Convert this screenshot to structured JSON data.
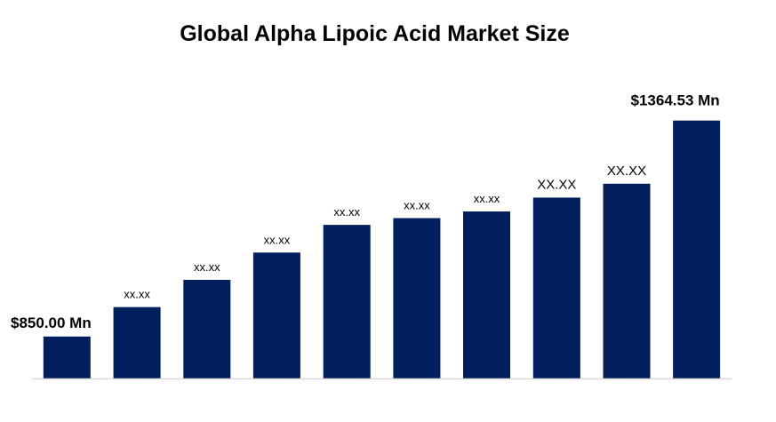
{
  "chart_data": {
    "type": "bar",
    "title": "Global Alpha Lipoic Acid Market Size",
    "xlabel": "",
    "ylabel": "",
    "categories": [
      "",
      "",
      "",
      "",
      "",
      "",
      "",
      "",
      "",
      ""
    ],
    "values": [
      850.0,
      920,
      985,
      1050,
      1116,
      1132,
      1148,
      1181,
      1214,
      1364.53
    ],
    "data_labels": [
      "$850.00 Mn",
      "xx.xx",
      "xx.xx",
      "xx.xx",
      "xx.xx",
      "xx.xx",
      "xx.xx",
      "XX.XX",
      "XX.XX",
      "$1364.53 Mn"
    ],
    "ylim": [
      750,
      1385
    ],
    "grid": false,
    "legend": "none",
    "colors": {
      "bar": "#001f5c",
      "baseline": "#d9d9d9",
      "text": "#000000"
    }
  }
}
